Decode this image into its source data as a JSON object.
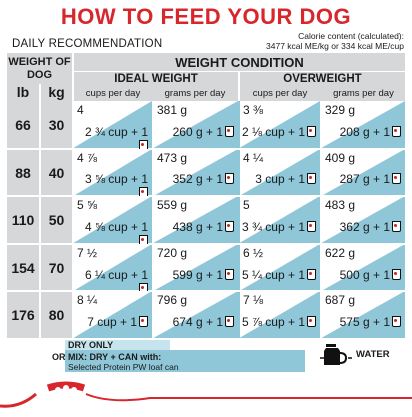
{
  "title": "HOW TO FEED YOUR DOG",
  "daily_recommendation": "DAILY RECOMMENDATION",
  "calorie_line1": "Calorie content (calculated):",
  "calorie_line2": "3477 kcal ME/kg or 334 kcal ME/cup",
  "weight_of_dog": "WEIGHT OF DOG",
  "unit_lb": "lb",
  "unit_kg": "kg",
  "weight_condition": "WEIGHT CONDITION",
  "ideal_weight": "IDEAL WEIGHT",
  "overweight": "OVERWEIGHT",
  "cups_per_day": "cups per day",
  "grams_per_day": "grams per day",
  "rows": [
    {
      "lb": "66",
      "kg": "30",
      "ideal_cups": "4",
      "ideal_grams": "381 g",
      "ideal_mix_cups": "2 ¾ cup + 1",
      "ideal_mix_grams": "260 g + 1",
      "over_cups": "3 ⅜",
      "over_grams": "329 g",
      "over_mix_cups": "2 ⅛ cup + 1",
      "over_mix_grams": "208 g + 1"
    },
    {
      "lb": "88",
      "kg": "40",
      "ideal_cups": "4 ⅞",
      "ideal_grams": "473 g",
      "ideal_mix_cups": "3 ⅝ cup + 1",
      "ideal_mix_grams": "352 g + 1",
      "over_cups": "4 ¼",
      "over_grams": "409 g",
      "over_mix_cups": "3 cup + 1",
      "over_mix_grams": "287 g + 1"
    },
    {
      "lb": "110",
      "kg": "50",
      "ideal_cups": "5 ⅝",
      "ideal_grams": "559 g",
      "ideal_mix_cups": "4 ⅝ cup + 1",
      "ideal_mix_grams": "438 g + 1",
      "over_cups": "5",
      "over_grams": "483 g",
      "over_mix_cups": "3 ¾ cup + 1",
      "over_mix_grams": "362 g + 1"
    },
    {
      "lb": "154",
      "kg": "70",
      "ideal_cups": "7 ½",
      "ideal_grams": "720 g",
      "ideal_mix_cups": "6 ¼ cup + 1",
      "ideal_mix_grams": "599 g + 1",
      "over_cups": "6 ½",
      "over_grams": "622 g",
      "over_mix_cups": "5 ¼ cup + 1",
      "over_mix_grams": "500 g + 1"
    },
    {
      "lb": "176",
      "kg": "80",
      "ideal_cups": "8 ¼",
      "ideal_grams": "796 g",
      "ideal_mix_cups": "7 cup + 1",
      "ideal_mix_grams": "674 g + 1",
      "over_cups": "7 ⅛",
      "over_grams": "687 g",
      "over_mix_cups": "5 ⅞ cup + 1",
      "over_mix_grams": "575 g + 1"
    }
  ],
  "legend_dry_only": "DRY ONLY",
  "legend_or": "OR",
  "legend_mix_line1": "MIX: DRY + CAN with:",
  "legend_mix_line2": "Selected Protein PW loaf can",
  "legend_water": "WATER",
  "colors": {
    "red": "#d7262c",
    "grey": "#d5d7d9",
    "blue": "#8fc6d8",
    "lightblue": "#c6e4ee"
  },
  "icons": [
    "can-icon",
    "water-jug-icon",
    "royal-canin-crown-logo"
  ]
}
